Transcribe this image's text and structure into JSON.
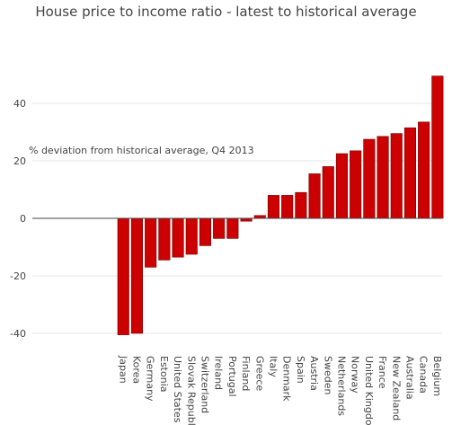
{
  "chart_data": {
    "type": "bar",
    "title": "House price to income ratio - latest to historical average",
    "annotation": "% deviation from historical average, Q4 2013",
    "xlabel": "",
    "ylabel": "",
    "ylim": [
      -44,
      54
    ],
    "yticks": [
      -40,
      -20,
      0,
      20,
      40
    ],
    "grid": true,
    "bar_color": "#cc0000",
    "bar_edge_color": "#7a0000",
    "categories": [
      "Japan",
      "Korea",
      "Germany",
      "Estonia",
      "United States",
      "Slovak Republic",
      "Switzerland",
      "Ireland",
      "Portugal",
      "Finland",
      "Greece",
      "Italy",
      "Denmark",
      "Spain",
      "Austria",
      "Sweden",
      "Netherlands",
      "Norway",
      "United Kingdom",
      "France",
      "New Zealand",
      "Australia",
      "Canada",
      "Belgium"
    ],
    "values": [
      -40.5,
      -40,
      -17,
      -14.5,
      -13.5,
      -12.5,
      -9.5,
      -7,
      -7,
      -1,
      1,
      8,
      8,
      9,
      15.5,
      18,
      22.5,
      23.5,
      27.5,
      28.5,
      29.5,
      31.5,
      33.5,
      49.5
    ]
  }
}
